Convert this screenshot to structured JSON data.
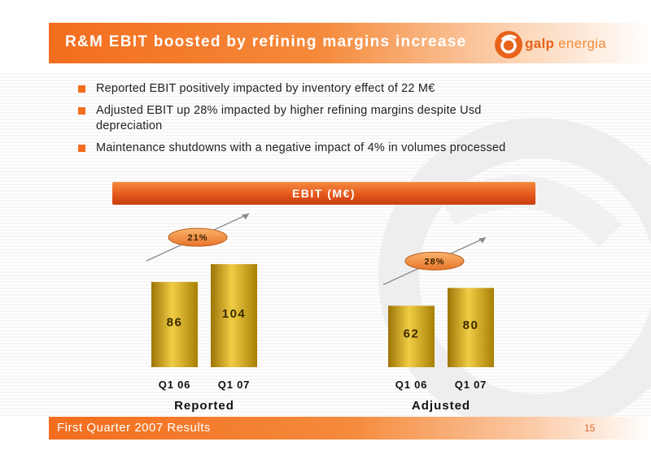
{
  "header": {
    "title": "R&M EBIT boosted by refining margins increase"
  },
  "logo": {
    "brand_bold": "galp",
    "brand_regular": " energia"
  },
  "bullets": [
    "Reported EBIT positively impacted by inventory effect of 22 M€",
    "Adjusted EBIT up 28% impacted by higher refining margins despite Usd depreciation",
    "Maintenance shutdowns with a negative impact of 4% in volumes processed"
  ],
  "chart_data": {
    "type": "bar",
    "title": "EBIT (M€)",
    "groups": [
      {
        "label": "Reported",
        "categories": [
          "Q1 06",
          "Q1 07"
        ],
        "values": [
          86,
          104
        ],
        "growth": "21%"
      },
      {
        "label": "Adjusted",
        "categories": [
          "Q1 06",
          "Q1 07"
        ],
        "values": [
          62,
          80
        ],
        "growth": "28%"
      }
    ],
    "colors": {
      "bar_light": "#f2d24a",
      "bar_dark": "#b58a08",
      "growth_bubble": "#f59a3b"
    }
  },
  "footer": {
    "text": "First Quarter 2007 Results",
    "page": "15"
  }
}
